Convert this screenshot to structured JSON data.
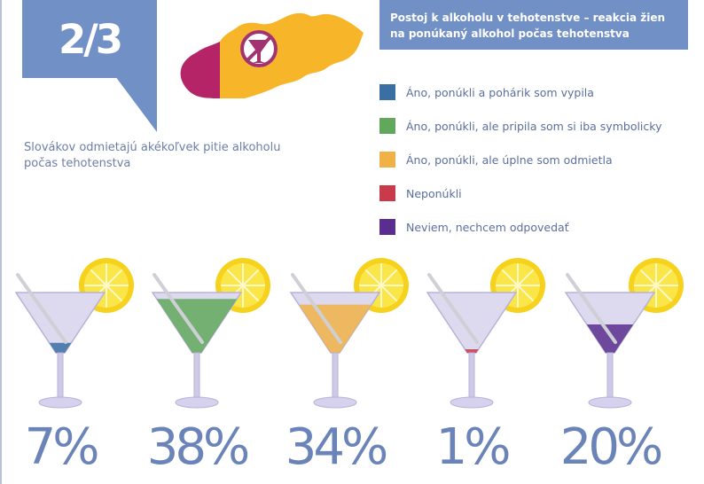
{
  "stat": {
    "value": "2/3",
    "text": "Slovákov odmietajú akékoľvek pitie alkoholu počas tehotenstva"
  },
  "legend": {
    "title": "Postoj k alkoholu v tehotenstve – reakcia žien na ponúkaný alkohol počas tehotenstva"
  },
  "map": {
    "colors": {
      "majority": "#f7b529",
      "minority": "#b52467",
      "badge": "#a33270"
    }
  },
  "chart_data": {
    "type": "pictogram",
    "unit": "%",
    "series": [
      {
        "name": "Áno, ponúkli a pohárik som vypila",
        "value": 7,
        "label": "7%",
        "color": "#3a6fa4"
      },
      {
        "name": "Áno, ponúkli, ale pripila som si iba symbolicky",
        "value": 38,
        "label": "38%",
        "color": "#62a85c"
      },
      {
        "name": "Áno, ponúkli, ale úplne som odmietla",
        "value": 34,
        "label": "34%",
        "color": "#f0b247"
      },
      {
        "name": "Neponúkli",
        "value": 1,
        "label": "1%",
        "color": "#c93a4a"
      },
      {
        "name": "Neviem, nechcem odpovedať",
        "value": 20,
        "label": "20%",
        "color": "#5a2e8e"
      }
    ]
  }
}
